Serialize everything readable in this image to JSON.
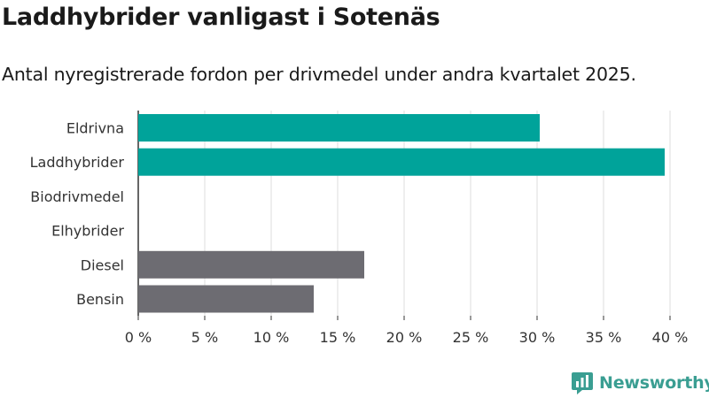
{
  "chart_data": {
    "type": "bar",
    "orientation": "horizontal",
    "title": "Laddhybrider vanligast i Sotenäs",
    "subtitle": "Antal nyregistrerade fordon per drivmedel under andra kvartalet 2025.",
    "categories": [
      "Eldrivna",
      "Laddhybrider",
      "Biodrivmedel",
      "Elhybrider",
      "Diesel",
      "Bensin"
    ],
    "values": [
      30.2,
      39.6,
      0,
      0,
      17.0,
      13.2
    ],
    "bar_colors": [
      "#00a39a",
      "#00a39a",
      "#00a39a",
      "#00a39a",
      "#6d6c72",
      "#6d6c72"
    ],
    "xlim": [
      0,
      40
    ],
    "x_ticks": [
      0,
      5,
      10,
      15,
      20,
      25,
      30,
      35,
      40
    ],
    "x_tick_labels": [
      "0 %",
      "5 %",
      "10 %",
      "15 %",
      "20 %",
      "25 %",
      "30 %",
      "35 %",
      "40 %"
    ],
    "grid": true,
    "legend": "none"
  },
  "brand": {
    "name": "Newsworthy",
    "color": "#3a9e92",
    "icon": "newsworthy-logo-icon"
  }
}
